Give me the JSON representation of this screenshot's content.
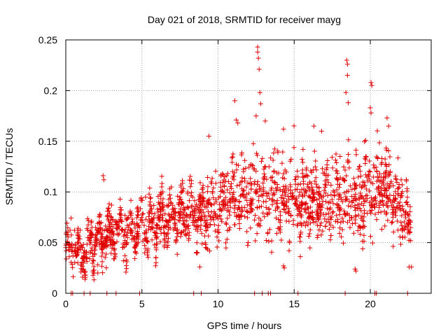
{
  "chart_data": {
    "type": "scatter",
    "title": "Day 021 of 2018, SRMTID for receiver mayg",
    "xlabel": "GPS time / hours",
    "ylabel": "SRMTID / TECUs",
    "xlim": [
      0,
      24
    ],
    "ylim": [
      0,
      0.25
    ],
    "x_ticks": [
      0,
      5,
      10,
      15,
      20
    ],
    "x_tick_labels": [
      "0",
      "5",
      "10",
      "15",
      "20"
    ],
    "y_ticks": [
      0,
      0.05,
      0.1,
      0.15,
      0.2,
      0.25
    ],
    "y_tick_labels": [
      "0",
      "0.05",
      "0.1",
      "0.15",
      "0.2",
      "0.25"
    ],
    "grid": true,
    "marker": "+",
    "series_color": "#e00000",
    "trend": [
      {
        "x": 0.0,
        "y": 0.045,
        "sd": 0.014
      },
      {
        "x": 1.0,
        "y": 0.04,
        "sd": 0.013
      },
      {
        "x": 2.0,
        "y": 0.05,
        "sd": 0.014
      },
      {
        "x": 3.0,
        "y": 0.058,
        "sd": 0.015
      },
      {
        "x": 4.0,
        "y": 0.062,
        "sd": 0.015
      },
      {
        "x": 5.0,
        "y": 0.065,
        "sd": 0.016
      },
      {
        "x": 6.0,
        "y": 0.07,
        "sd": 0.017
      },
      {
        "x": 7.0,
        "y": 0.074,
        "sd": 0.017
      },
      {
        "x": 8.0,
        "y": 0.078,
        "sd": 0.018
      },
      {
        "x": 9.0,
        "y": 0.08,
        "sd": 0.02
      },
      {
        "x": 10.0,
        "y": 0.085,
        "sd": 0.022
      },
      {
        "x": 11.0,
        "y": 0.095,
        "sd": 0.025
      },
      {
        "x": 12.0,
        "y": 0.095,
        "sd": 0.026
      },
      {
        "x": 13.0,
        "y": 0.1,
        "sd": 0.028
      },
      {
        "x": 14.0,
        "y": 0.095,
        "sd": 0.026
      },
      {
        "x": 15.0,
        "y": 0.095,
        "sd": 0.025
      },
      {
        "x": 16.0,
        "y": 0.095,
        "sd": 0.025
      },
      {
        "x": 17.0,
        "y": 0.09,
        "sd": 0.025
      },
      {
        "x": 18.0,
        "y": 0.095,
        "sd": 0.027
      },
      {
        "x": 19.0,
        "y": 0.09,
        "sd": 0.026
      },
      {
        "x": 20.0,
        "y": 0.1,
        "sd": 0.028
      },
      {
        "x": 21.0,
        "y": 0.105,
        "sd": 0.028
      },
      {
        "x": 22.0,
        "y": 0.09,
        "sd": 0.024
      },
      {
        "x": 22.7,
        "y": 0.06,
        "sd": 0.016
      }
    ],
    "outliers": [
      {
        "x": 12.6,
        "y": 0.243
      },
      {
        "x": 12.6,
        "y": 0.238
      },
      {
        "x": 12.65,
        "y": 0.232
      },
      {
        "x": 12.7,
        "y": 0.221
      },
      {
        "x": 12.75,
        "y": 0.198
      },
      {
        "x": 12.8,
        "y": 0.187
      },
      {
        "x": 12.5,
        "y": 0.175
      },
      {
        "x": 11.1,
        "y": 0.19
      },
      {
        "x": 11.2,
        "y": 0.171
      },
      {
        "x": 11.3,
        "y": 0.168
      },
      {
        "x": 18.45,
        "y": 0.23
      },
      {
        "x": 18.5,
        "y": 0.226
      },
      {
        "x": 18.5,
        "y": 0.215
      },
      {
        "x": 18.4,
        "y": 0.198
      },
      {
        "x": 18.55,
        "y": 0.188
      },
      {
        "x": 20.05,
        "y": 0.208
      },
      {
        "x": 20.1,
        "y": 0.205
      },
      {
        "x": 20.0,
        "y": 0.183
      },
      {
        "x": 20.05,
        "y": 0.178
      },
      {
        "x": 21.1,
        "y": 0.173
      },
      {
        "x": 21.2,
        "y": 0.165
      },
      {
        "x": 13.1,
        "y": 0.17
      },
      {
        "x": 14.3,
        "y": 0.162
      },
      {
        "x": 16.3,
        "y": 0.165
      },
      {
        "x": 16.8,
        "y": 0.16
      },
      {
        "x": 9.4,
        "y": 0.155
      },
      {
        "x": 2.45,
        "y": 0.116
      },
      {
        "x": 2.5,
        "y": 0.112
      },
      {
        "x": 8.8,
        "y": 0.026
      },
      {
        "x": 14.3,
        "y": 0.027
      },
      {
        "x": 14.35,
        "y": 0.025
      },
      {
        "x": 19.0,
        "y": 0.024
      },
      {
        "x": 19.05,
        "y": 0.022
      },
      {
        "x": 22.55,
        "y": 0.026
      },
      {
        "x": 22.7,
        "y": 0.026
      },
      {
        "x": 1.1,
        "y": 0.016
      },
      {
        "x": 1.2,
        "y": 0.022
      },
      {
        "x": 2.1,
        "y": 0.02
      }
    ],
    "zero_points_x": [
      0.35,
      0.45,
      1.2,
      1.6,
      2.7,
      3.3,
      4.85,
      8.4,
      8.9,
      12.4,
      12.9,
      13.3,
      13.45,
      15.25,
      18.35,
      20.3,
      20.4,
      22.45
    ]
  }
}
